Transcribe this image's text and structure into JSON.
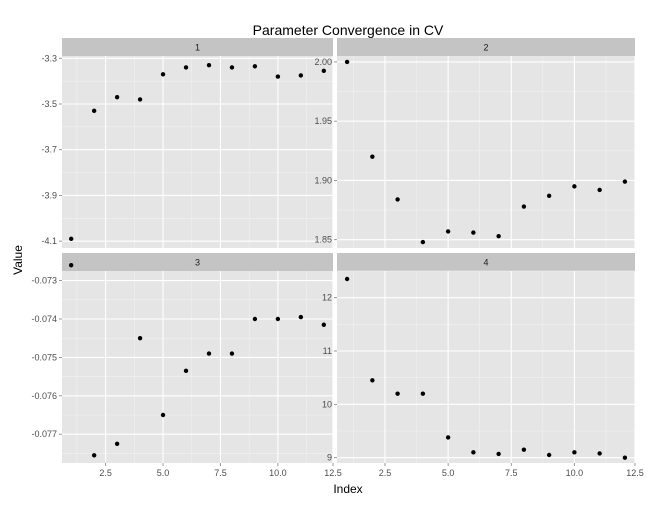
{
  "chart_data": {
    "type": "scatter",
    "title": "Parameter Convergence in CV",
    "xlabel": "Index",
    "ylabel": "Value",
    "xlim": [
      0.6,
      12.4
    ],
    "x_ticks": [
      2.5,
      5.0,
      7.5,
      10.0,
      12.5
    ],
    "x_tick_labels": [
      "2.5",
      "5.0",
      "7.5",
      "10.0",
      "12.5"
    ],
    "grid": true,
    "point_color": "#000000",
    "panel_bg": "#e5e5e5",
    "strip_bg": "#c4c4c4",
    "panels": [
      {
        "label": "1",
        "ylim": [
          -4.13,
          -3.29
        ],
        "y_ticks": [
          -4.1,
          -3.9,
          -3.7,
          -3.5,
          -3.3
        ],
        "y_tick_labels": [
          "-4.1",
          "-3.9",
          "-3.7",
          "-3.5",
          "-3.3"
        ],
        "x": [
          1,
          2,
          3,
          4,
          5,
          6,
          7,
          8,
          9,
          10,
          11,
          12
        ],
        "y": [
          -4.09,
          -3.53,
          -3.47,
          -3.48,
          -3.37,
          -3.34,
          -3.33,
          -3.34,
          -3.335,
          -3.38,
          -3.375,
          -3.355
        ]
      },
      {
        "label": "2",
        "ylim": [
          1.843,
          2.005
        ],
        "y_ticks": [
          1.85,
          1.9,
          1.95,
          2.0
        ],
        "y_tick_labels": [
          "1.85",
          "1.90",
          "1.95",
          "2.00"
        ],
        "x": [
          1,
          2,
          3,
          4,
          5,
          6,
          7,
          8,
          9,
          10,
          11,
          12
        ],
        "y": [
          2.0,
          1.92,
          1.884,
          1.848,
          1.857,
          1.856,
          1.853,
          1.878,
          1.887,
          1.895,
          1.892,
          1.899
        ]
      },
      {
        "label": "3",
        "ylim": [
          -0.07775,
          -0.07275
        ],
        "y_ticks": [
          -0.077,
          -0.076,
          -0.075,
          -0.074,
          -0.073
        ],
        "y_tick_labels": [
          "-0.077",
          "-0.076",
          "-0.075",
          "-0.074",
          "-0.073"
        ],
        "x": [
          1,
          2,
          3,
          4,
          5,
          6,
          7,
          8,
          9,
          10,
          11,
          12
        ],
        "y": [
          -0.0726,
          -0.07755,
          -0.07725,
          -0.0745,
          -0.0765,
          -0.07535,
          -0.0749,
          -0.0749,
          -0.074,
          -0.074,
          -0.07395,
          -0.07415
        ]
      },
      {
        "label": "4",
        "ylim": [
          8.9,
          12.5
        ],
        "y_ticks": [
          9,
          10,
          11,
          12
        ],
        "y_tick_labels": [
          "9",
          "10",
          "11",
          "12"
        ],
        "x": [
          1,
          2,
          3,
          4,
          5,
          6,
          7,
          8,
          9,
          10,
          11,
          12
        ],
        "y": [
          12.35,
          10.45,
          10.2,
          10.2,
          9.38,
          9.1,
          9.07,
          9.15,
          9.05,
          9.1,
          9.08,
          9.0
        ]
      }
    ]
  }
}
